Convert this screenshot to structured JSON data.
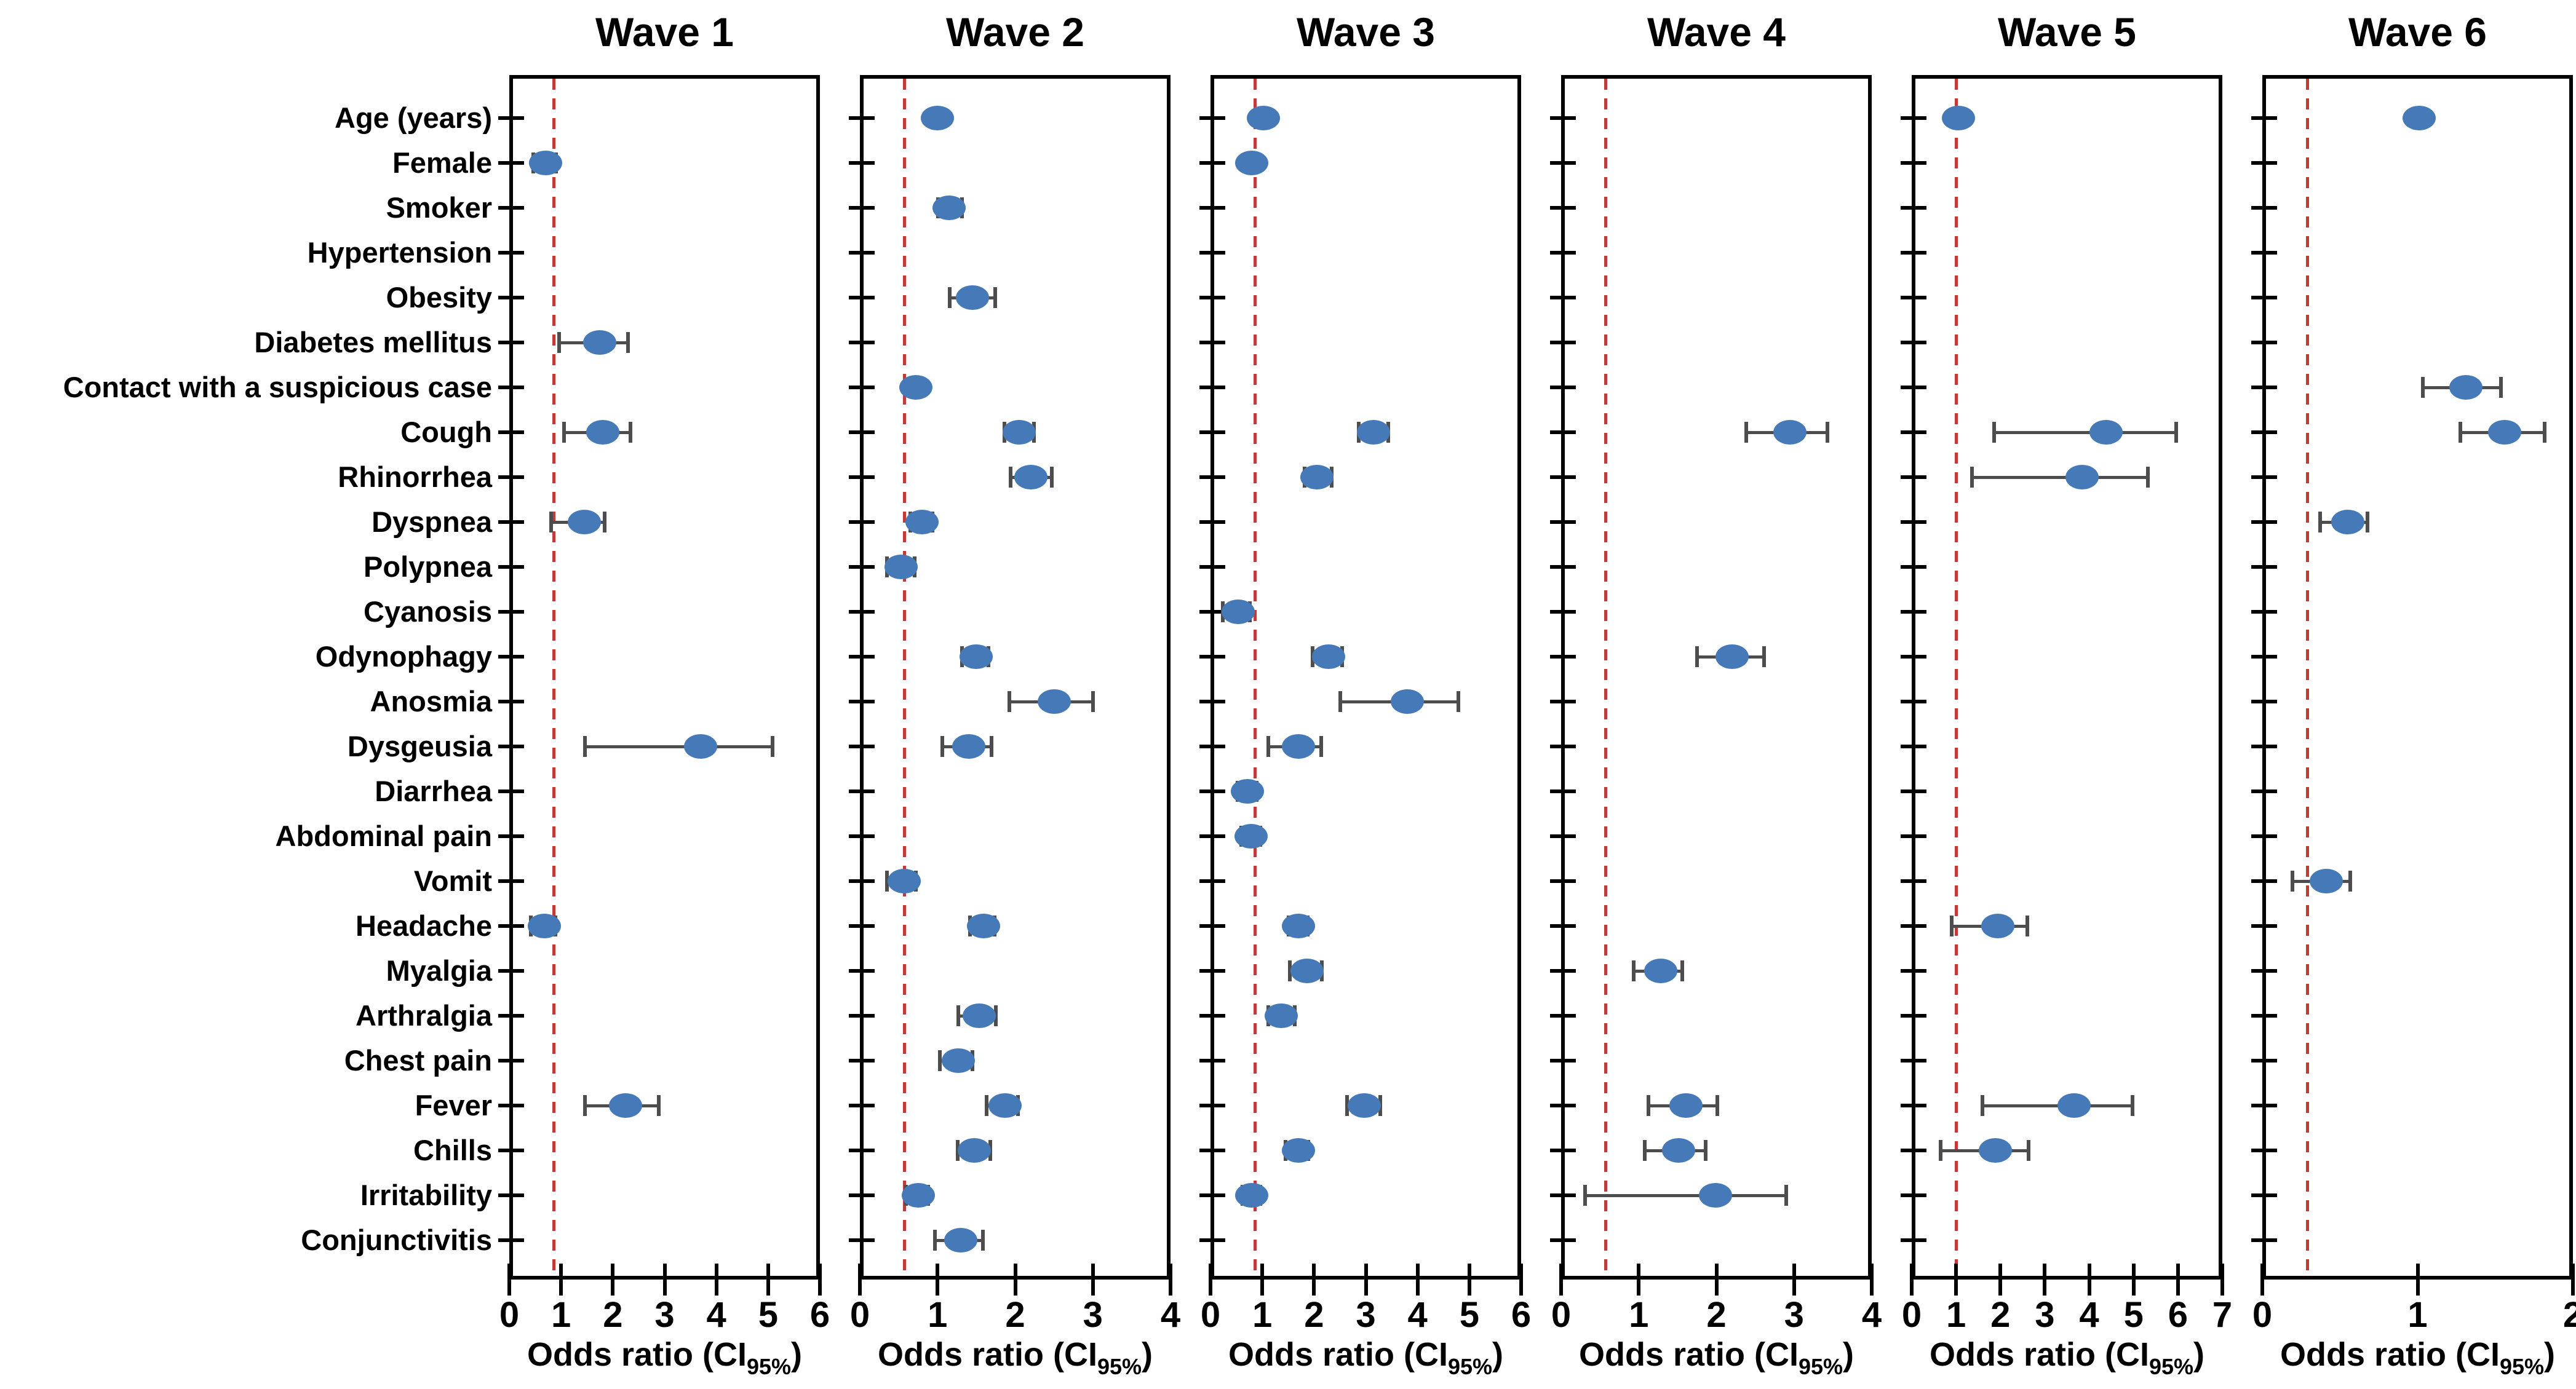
{
  "figure": {
    "axis_label": {
      "pre": "Odds ratio (CI",
      "sub": "95%",
      "post": ")"
    },
    "colors": {
      "marker": "#4579B8",
      "error_bar": "#4D4D4D",
      "reference_line": "#C23B3B",
      "axis": "#000000",
      "background": "#FFFFFF"
    }
  },
  "chart_data": {
    "type": "scatter",
    "variant": "forest-plot-odds-ratios-with-95ci",
    "grid": false,
    "legend": "none",
    "categories": [
      "Age (years)",
      "Female",
      "Smoker",
      "Hypertension",
      "Obesity",
      "Diabetes mellitus",
      "Contact with a suspicious case",
      "Cough",
      "Rhinorrhea",
      "Dyspnea",
      "Polypnea",
      "Cyanosis",
      "Odynophagy",
      "Anosmia",
      "Dysgeusia",
      "Diarrhea",
      "Abdominal pain",
      "Vomit",
      "Headache",
      "Myalgia",
      "Arthralgia",
      "Chest pain",
      "Fever",
      "Chills",
      "Irritability",
      "Conjunctivitis"
    ],
    "xlabel": "Odds ratio (CI95%)",
    "panels": [
      {
        "title": "Wave 1",
        "xlim": [
          0,
          6
        ],
        "ticks": [
          0,
          1,
          2,
          3,
          4,
          5,
          6
        ],
        "ref_line_x": 0.86,
        "points": [
          {
            "category": "Female",
            "or": 0.7,
            "lo": 0.45,
            "hi": 0.92
          },
          {
            "category": "Diabetes mellitus",
            "or": 1.75,
            "lo": 0.95,
            "hi": 2.3
          },
          {
            "category": "Cough",
            "or": 1.8,
            "lo": 1.05,
            "hi": 2.35
          },
          {
            "category": "Dyspnea",
            "or": 1.45,
            "lo": 0.8,
            "hi": 1.85
          },
          {
            "category": "Dysgeusia",
            "or": 3.7,
            "lo": 1.45,
            "hi": 5.1
          },
          {
            "category": "Headache",
            "or": 0.68,
            "lo": 0.4,
            "hi": 0.9
          },
          {
            "category": "Fever",
            "or": 2.25,
            "lo": 1.45,
            "hi": 2.9
          }
        ]
      },
      {
        "title": "Wave 2",
        "xlim": [
          0,
          4
        ],
        "ticks": [
          0,
          1,
          2,
          3,
          4
        ],
        "ref_line_x": 0.57,
        "points": [
          {
            "category": "Age (years)",
            "or": 1.0,
            "lo": null,
            "hi": null
          },
          {
            "category": "Smoker",
            "or": 1.15,
            "lo": 1.0,
            "hi": 1.32
          },
          {
            "category": "Obesity",
            "or": 1.45,
            "lo": 1.15,
            "hi": 1.75
          },
          {
            "category": "Contact with a suspicious case",
            "or": 0.72,
            "lo": null,
            "hi": null
          },
          {
            "category": "Cough",
            "or": 2.05,
            "lo": 1.85,
            "hi": 2.25
          },
          {
            "category": "Rhinorrhea",
            "or": 2.2,
            "lo": 1.93,
            "hi": 2.48
          },
          {
            "category": "Dyspnea",
            "or": 0.8,
            "lo": 0.64,
            "hi": 0.94
          },
          {
            "category": "Polypnea",
            "or": 0.53,
            "lo": 0.34,
            "hi": 0.71
          },
          {
            "category": "Odynophagy",
            "or": 1.5,
            "lo": 1.31,
            "hi": 1.66
          },
          {
            "category": "Anosmia",
            "or": 2.5,
            "lo": 1.92,
            "hi": 3.01
          },
          {
            "category": "Dysgeusia",
            "or": 1.4,
            "lo": 1.05,
            "hi": 1.7
          },
          {
            "category": "Vomit",
            "or": 0.57,
            "lo": 0.34,
            "hi": 0.73
          },
          {
            "category": "Headache",
            "or": 1.59,
            "lo": 1.41,
            "hi": 1.74
          },
          {
            "category": "Arthralgia",
            "or": 1.54,
            "lo": 1.26,
            "hi": 1.76
          },
          {
            "category": "Chest pain",
            "or": 1.27,
            "lo": 1.02,
            "hi": 1.46
          },
          {
            "category": "Fever",
            "or": 1.87,
            "lo": 1.62,
            "hi": 2.04
          },
          {
            "category": "Chills",
            "or": 1.47,
            "lo": 1.25,
            "hi": 1.69
          },
          {
            "category": "Irritability",
            "or": 0.75,
            "lo": 0.59,
            "hi": 0.89
          },
          {
            "category": "Conjunctivitis",
            "or": 1.3,
            "lo": 0.96,
            "hi": 1.59
          }
        ]
      },
      {
        "title": "Wave 3",
        "xlim": [
          0,
          6
        ],
        "ticks": [
          0,
          1,
          2,
          3,
          4,
          5,
          6
        ],
        "ref_line_x": 0.86,
        "points": [
          {
            "category": "Age (years)",
            "or": 1.02,
            "lo": null,
            "hi": null
          },
          {
            "category": "Female",
            "or": 0.8,
            "lo": null,
            "hi": null
          },
          {
            "category": "Cough",
            "or": 3.15,
            "lo": 2.85,
            "hi": 3.45
          },
          {
            "category": "Rhinorrhea",
            "or": 2.05,
            "lo": 1.8,
            "hi": 2.35
          },
          {
            "category": "Cyanosis",
            "or": 0.54,
            "lo": 0.22,
            "hi": 0.77
          },
          {
            "category": "Odynophagy",
            "or": 2.28,
            "lo": 1.96,
            "hi": 2.56
          },
          {
            "category": "Anosmia",
            "or": 3.8,
            "lo": 2.5,
            "hi": 4.8
          },
          {
            "category": "Dysgeusia",
            "or": 1.7,
            "lo": 1.1,
            "hi": 2.15
          },
          {
            "category": "Diarrhea",
            "or": 0.71,
            "lo": 0.51,
            "hi": 0.9
          },
          {
            "category": "Abdominal pain",
            "or": 0.78,
            "lo": 0.58,
            "hi": 0.98
          },
          {
            "category": "Headache",
            "or": 1.7,
            "lo": 1.5,
            "hi": 1.89
          },
          {
            "category": "Myalgia",
            "or": 1.87,
            "lo": 1.52,
            "hi": 2.16
          },
          {
            "category": "Arthralgia",
            "or": 1.37,
            "lo": 1.11,
            "hi": 1.64
          },
          {
            "category": "Fever",
            "or": 2.97,
            "lo": 2.63,
            "hi": 3.29
          },
          {
            "category": "Chills",
            "or": 1.7,
            "lo": 1.44,
            "hi": 1.9
          },
          {
            "category": "Irritability",
            "or": 0.8,
            "lo": 0.61,
            "hi": 0.97
          }
        ]
      },
      {
        "title": "Wave 4",
        "xlim": [
          0,
          4
        ],
        "ticks": [
          0,
          1,
          2,
          3,
          4
        ],
        "ref_line_x": 0.57,
        "points": [
          {
            "category": "Cough",
            "or": 2.95,
            "lo": 2.38,
            "hi": 3.44
          },
          {
            "category": "Odynophagy",
            "or": 2.2,
            "lo": 1.74,
            "hi": 2.62
          },
          {
            "category": "Myalgia",
            "or": 1.28,
            "lo": 0.93,
            "hi": 1.57
          },
          {
            "category": "Fever",
            "or": 1.61,
            "lo": 1.12,
            "hi": 2.02
          },
          {
            "category": "Chills",
            "or": 1.51,
            "lo": 1.07,
            "hi": 1.87
          },
          {
            "category": "Irritability",
            "or": 1.99,
            "lo": 0.3,
            "hi": 2.91
          }
        ]
      },
      {
        "title": "Wave 5",
        "xlim": [
          0,
          7
        ],
        "ticks": [
          0,
          1,
          2,
          3,
          4,
          5,
          6,
          7
        ],
        "ref_line_x": 1.0,
        "points": [
          {
            "category": "Age (years)",
            "or": 1.05,
            "lo": null,
            "hi": null
          },
          {
            "category": "Cough",
            "or": 4.38,
            "lo": 1.84,
            "hi": 5.98
          },
          {
            "category": "Rhinorrhea",
            "or": 3.84,
            "lo": 1.35,
            "hi": 5.33
          },
          {
            "category": "Headache",
            "or": 1.94,
            "lo": 0.89,
            "hi": 2.62
          },
          {
            "category": "Fever",
            "or": 3.66,
            "lo": 1.58,
            "hi": 4.99
          },
          {
            "category": "Chills",
            "or": 1.88,
            "lo": 0.64,
            "hi": 2.65
          }
        ]
      },
      {
        "title": "Wave 6",
        "xlim": [
          0,
          2
        ],
        "ticks": [
          0,
          1,
          2
        ],
        "ref_line_x": 0.29,
        "points": [
          {
            "category": "Age (years)",
            "or": 1.01,
            "lo": null,
            "hi": null
          },
          {
            "category": "Contact with a suspicious case",
            "or": 1.31,
            "lo": 1.03,
            "hi": 1.54
          },
          {
            "category": "Cough",
            "or": 1.56,
            "lo": 1.27,
            "hi": 1.82
          },
          {
            "category": "Dyspnea",
            "or": 0.55,
            "lo": 0.37,
            "hi": 0.68
          },
          {
            "category": "Vomit",
            "or": 0.41,
            "lo": 0.19,
            "hi": 0.57
          }
        ]
      }
    ]
  }
}
